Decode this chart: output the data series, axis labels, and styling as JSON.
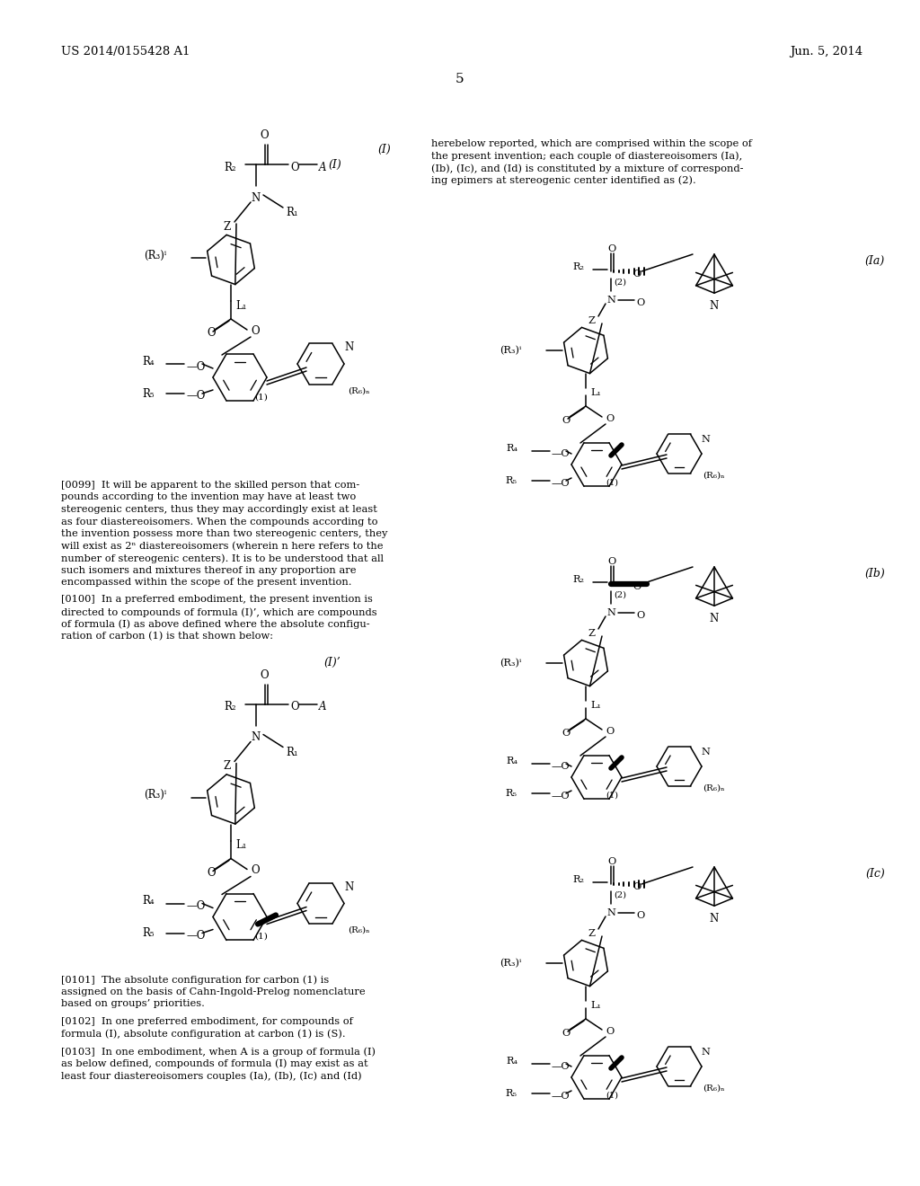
{
  "page_header_left": "US 2014/0155428 A1",
  "page_header_right": "Jun. 5, 2014",
  "page_number": "5",
  "bg_color": "#ffffff",
  "text_color": "#000000"
}
